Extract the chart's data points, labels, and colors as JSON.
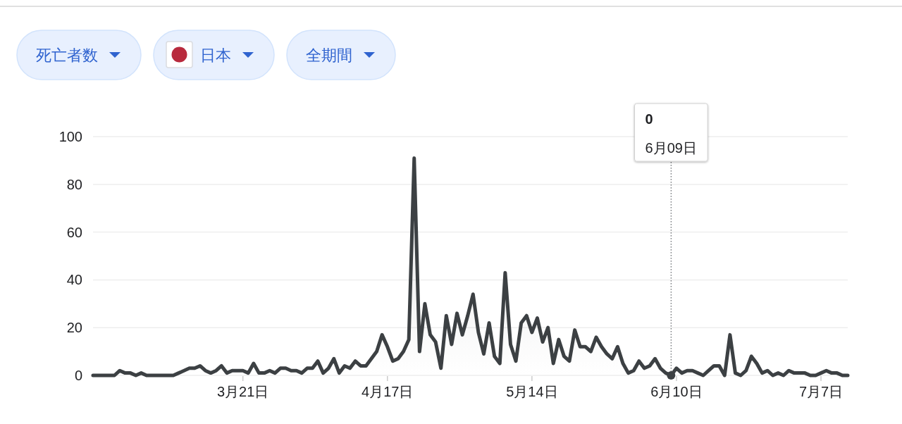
{
  "chart_data": {
    "type": "area",
    "annotations": [
      "死亡者数",
      "日本",
      "全期間",
      "0"
    ],
    "x": [
      "--02-22",
      "--02-23",
      "--02-24",
      "--02-25",
      "--02-26",
      "--02-27",
      "--02-28",
      "--02-29",
      "--03-01",
      "--03-02",
      "--03-03",
      "--03-04",
      "--03-05",
      "--03-06",
      "--03-07",
      "--03-08",
      "--03-09",
      "--03-10",
      "--03-11",
      "--03-12",
      "--03-13",
      "--03-14",
      "--03-15",
      "--03-16",
      "--03-17",
      "--03-18",
      "--03-19",
      "--03-20",
      "--03-21",
      "--03-22",
      "--03-23",
      "--03-24",
      "--03-25",
      "--03-26",
      "--03-27",
      "--03-28",
      "--03-29",
      "--03-30",
      "--03-31",
      "--04-01",
      "--04-02",
      "--04-03",
      "--04-04",
      "--04-05",
      "--04-06",
      "--04-07",
      "--04-08",
      "--04-09",
      "--04-10",
      "--04-11",
      "--04-12",
      "--04-13",
      "--04-14",
      "--04-15",
      "--04-16",
      "--04-17",
      "--04-18",
      "--04-19",
      "--04-20",
      "--04-21",
      "--04-22",
      "--04-23",
      "--04-24",
      "--04-25",
      "--04-26",
      "--04-27",
      "--04-28",
      "--04-29",
      "--04-30",
      "--05-01",
      "--05-02",
      "--05-03",
      "--05-04",
      "--05-05",
      "--05-06",
      "--05-07",
      "--05-08",
      "--05-09",
      "--05-10",
      "--05-11",
      "--05-12",
      "--05-13",
      "--05-14",
      "--05-15",
      "--05-16",
      "--05-17",
      "--05-18",
      "--05-19",
      "--05-20",
      "--05-21",
      "--05-22",
      "--05-23",
      "--05-24",
      "--05-25",
      "--05-26",
      "--05-27",
      "--05-28",
      "--05-29",
      "--05-30",
      "--05-31",
      "--06-01",
      "--06-02",
      "--06-03",
      "--06-04",
      "--06-05",
      "--06-06",
      "--06-07",
      "--06-08",
      "--06-09",
      "--06-10",
      "--06-11",
      "--06-12",
      "--06-13",
      "--06-14",
      "--06-15",
      "--06-16",
      "--06-17",
      "--06-18",
      "--06-19",
      "--06-20",
      "--06-21",
      "--06-22",
      "--06-23",
      "--06-24",
      "--06-25",
      "--06-26",
      "--06-27",
      "--06-28",
      "--06-29",
      "--06-30",
      "--07-01",
      "--07-02",
      "--07-03",
      "--07-04",
      "--07-05",
      "--07-06",
      "--07-07",
      "--07-08",
      "--07-09",
      "--07-10",
      "--07-11",
      "--07-12"
    ],
    "values": [
      0,
      0,
      0,
      0,
      0,
      2,
      1,
      1,
      0,
      1,
      0,
      0,
      0,
      0,
      0,
      0,
      1,
      2,
      3,
      3,
      4,
      2,
      1,
      2,
      4,
      1,
      2,
      2,
      2,
      1,
      5,
      1,
      1,
      2,
      1,
      3,
      3,
      2,
      2,
      1,
      3,
      3,
      6,
      1,
      3,
      7,
      1,
      4,
      3,
      6,
      4,
      4,
      7,
      10,
      17,
      12,
      6,
      7,
      10,
      15,
      91,
      10,
      30,
      17,
      14,
      3,
      25,
      13,
      26,
      17,
      25,
      34,
      18,
      9,
      22,
      8,
      5,
      43,
      13,
      6,
      22,
      25,
      18,
      24,
      14,
      20,
      5,
      15,
      8,
      6,
      19,
      12,
      12,
      10,
      16,
      12,
      9,
      7,
      12,
      5,
      1,
      2,
      6,
      3,
      4,
      7,
      3,
      1,
      0,
      3,
      1,
      2,
      2,
      1,
      0,
      2,
      4,
      4,
      0,
      17,
      1,
      0,
      2,
      8,
      5,
      1,
      2,
      0,
      1,
      0,
      2,
      1,
      1,
      1,
      0,
      0,
      1,
      2,
      1,
      1,
      0,
      0
    ],
    "color": "#3c4043",
    "xlim": [
      "--02-22",
      "--07-12"
    ],
    "xticks": [
      {
        "value": "--03-21",
        "label": "3月21日"
      },
      {
        "value": "--04-17",
        "label": "4月17日"
      },
      {
        "value": "--05-14",
        "label": "5月14日"
      },
      {
        "value": "--06-10",
        "label": "6月10日"
      },
      {
        "value": "--07-07",
        "label": "7月7日"
      }
    ],
    "ylim": [
      0,
      100
    ],
    "yticks": [
      0,
      20,
      40,
      60,
      80,
      100
    ],
    "grid": "y",
    "ref_lines": [
      {
        "axis": "x",
        "value": "--06-09",
        "label": "6月09日",
        "line_style": "dotted",
        "color": "#5f6368"
      }
    ]
  }
}
